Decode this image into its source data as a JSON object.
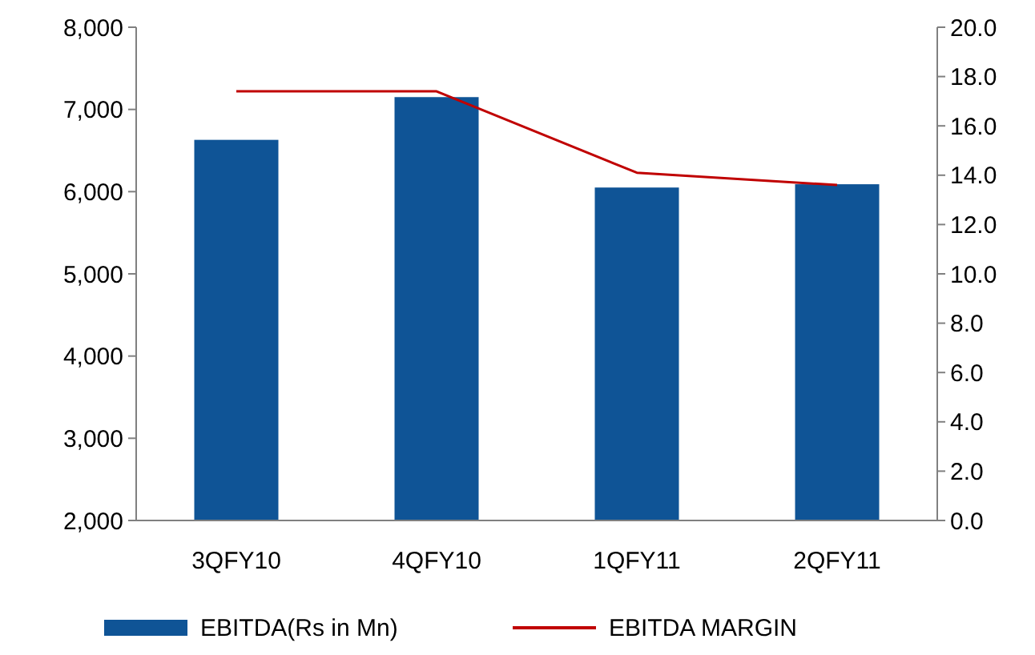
{
  "chart_data": {
    "type": "bar",
    "categories": [
      "3QFY10",
      "4QFY10",
      "1QFY11",
      "2QFY11"
    ],
    "series": [
      {
        "name": "EBITDA(Rs in Mn)",
        "color": "#0f5496",
        "values": [
          6630,
          7150,
          6050,
          6090
        ]
      },
      {
        "name": "EBITDA MARGIN",
        "type": "line",
        "axis": "y2",
        "color": "#c00000",
        "values": [
          17.4,
          17.4,
          14.1,
          13.6
        ]
      }
    ],
    "ylim": [
      2000,
      8000
    ],
    "yticks": [
      {
        "value": 2000,
        "label": "2,000"
      },
      {
        "value": 3000,
        "label": "3,000"
      },
      {
        "value": 4000,
        "label": "4,000"
      },
      {
        "value": 5000,
        "label": "5,000"
      },
      {
        "value": 6000,
        "label": "6,000"
      },
      {
        "value": 7000,
        "label": "7,000"
      },
      {
        "value": 8000,
        "label": "8,000"
      }
    ],
    "y2lim": [
      0,
      20
    ],
    "y2ticks": [
      {
        "value": 0,
        "label": "0.0"
      },
      {
        "value": 2,
        "label": "2.0"
      },
      {
        "value": 4,
        "label": "4.0"
      },
      {
        "value": 6,
        "label": "6.0"
      },
      {
        "value": 8,
        "label": "8.0"
      },
      {
        "value": 10,
        "label": "10.0"
      },
      {
        "value": 12,
        "label": "12.0"
      },
      {
        "value": 14,
        "label": "14.0"
      },
      {
        "value": 16,
        "label": "16.0"
      },
      {
        "value": 18,
        "label": "18.0"
      },
      {
        "value": 20,
        "label": "20.0"
      }
    ],
    "legend": "bottom",
    "marker": "none"
  }
}
